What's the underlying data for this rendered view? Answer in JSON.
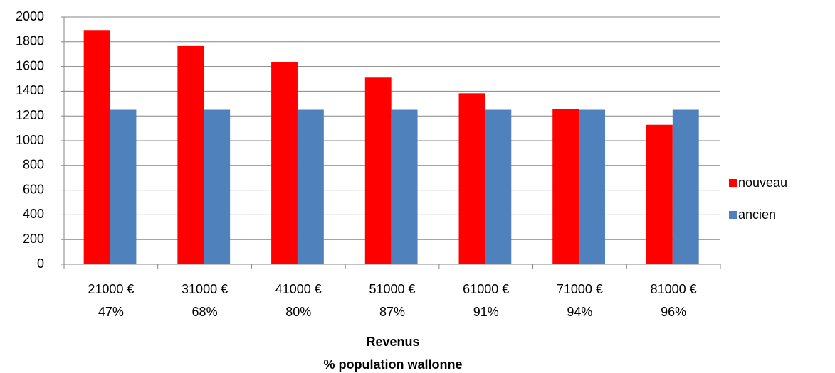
{
  "chart_data": {
    "type": "bar",
    "categories": [
      [
        "21000 €",
        "47%"
      ],
      [
        "31000 €",
        "68%"
      ],
      [
        "41000 €",
        "80%"
      ],
      [
        "51000 €",
        "87%"
      ],
      [
        "61000 €",
        "91%"
      ],
      [
        "71000 €",
        "94%"
      ],
      [
        "81000 €",
        "96%"
      ]
    ],
    "series": [
      {
        "name": "nouveau",
        "color": "#ff0000",
        "values": [
          1895,
          1765,
          1638,
          1510,
          1383,
          1257,
          1128
        ]
      },
      {
        "name": "ancien",
        "color": "#4f81bd",
        "values": [
          1250,
          1250,
          1250,
          1250,
          1250,
          1250,
          1250
        ]
      }
    ],
    "x_label": [
      "Revenus",
      "% population wallonne"
    ],
    "ylim": [
      0,
      2000
    ],
    "yticks": [
      0,
      200,
      400,
      600,
      800,
      1000,
      1200,
      1400,
      1600,
      1800,
      2000
    ],
    "grid": true,
    "legend": "right"
  }
}
